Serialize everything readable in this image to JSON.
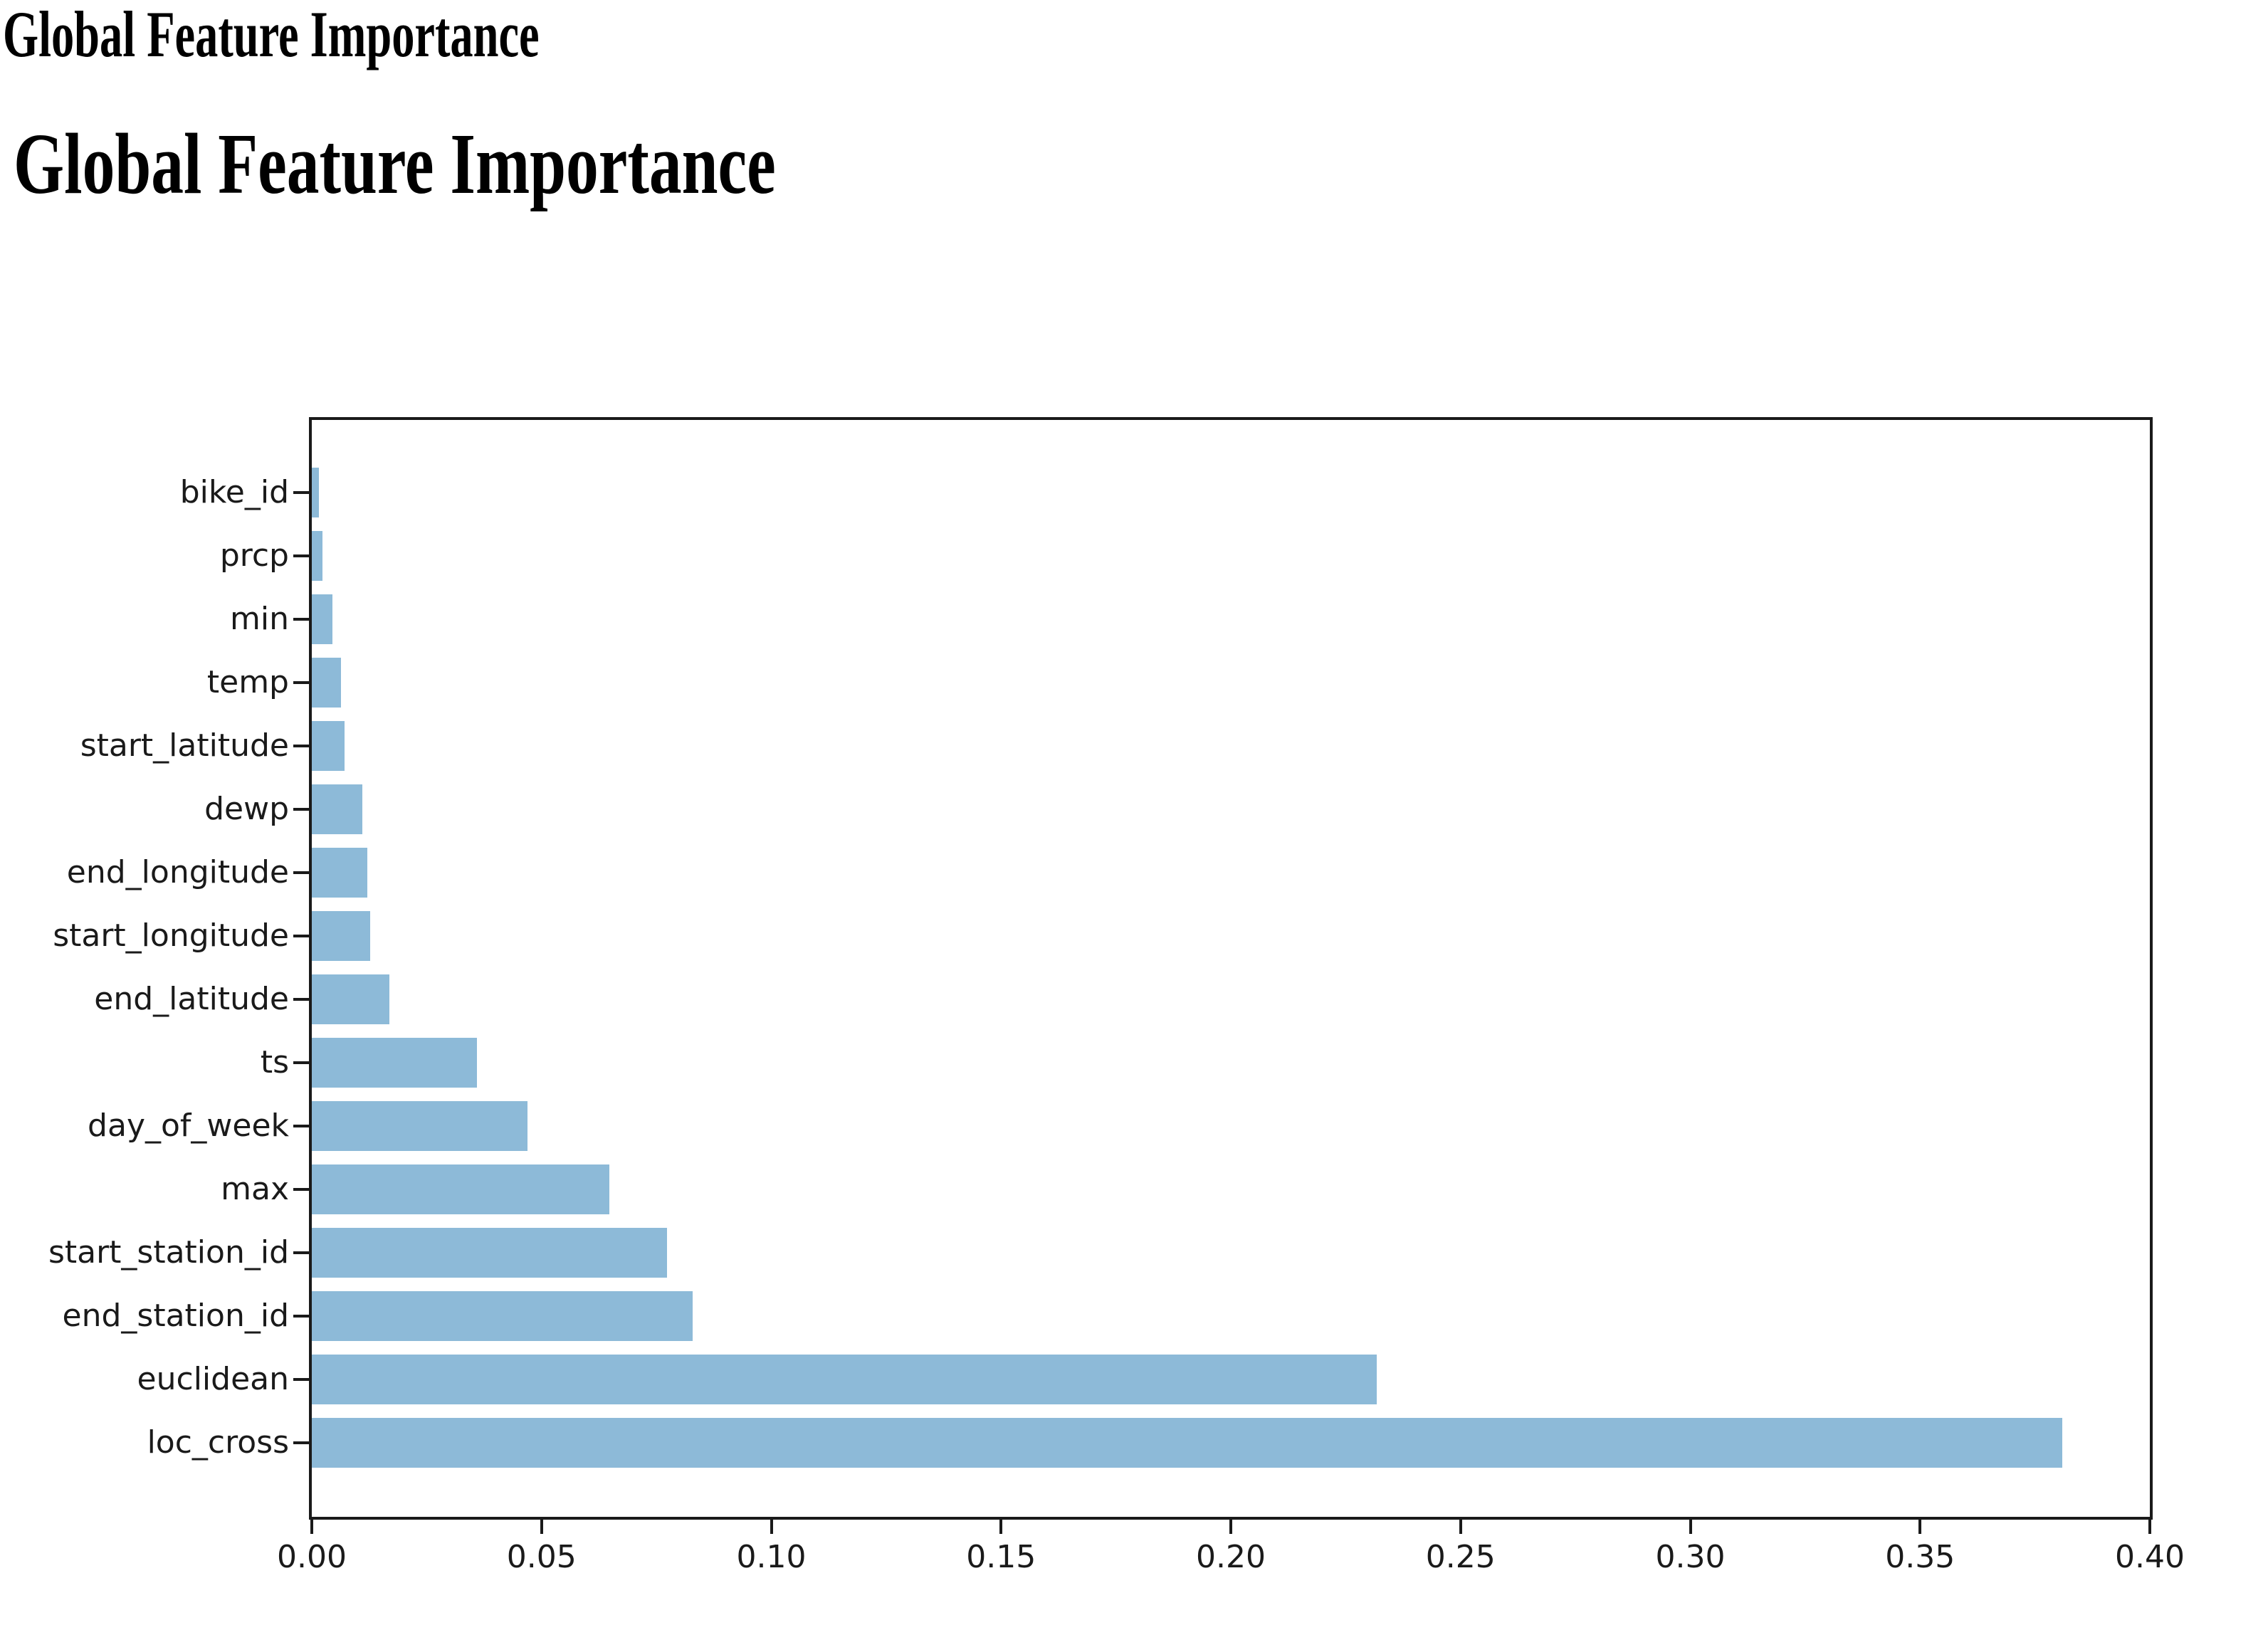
{
  "page": {
    "window_title": "Global Feature Importance",
    "heading": "Global Feature Importance"
  },
  "chart_data": {
    "type": "bar",
    "orientation": "horizontal",
    "title": "Global Feature Importance",
    "categories": [
      "bike_id",
      "prcp",
      "min",
      "temp",
      "start_latitude",
      "dewp",
      "end_longitude",
      "start_longitude",
      "end_latitude",
      "ts",
      "day_of_week",
      "max",
      "start_station_id",
      "end_station_id",
      "euclidean",
      "loc_cross"
    ],
    "values": [
      0.0015,
      0.0023,
      0.0045,
      0.0064,
      0.0071,
      0.011,
      0.0121,
      0.0127,
      0.0169,
      0.0359,
      0.0469,
      0.0648,
      0.0773,
      0.0829,
      0.2317,
      0.381
    ],
    "xlabel": "",
    "ylabel": "",
    "xlim": [
      0,
      0.4
    ],
    "x_tick_labels": [
      "0.00",
      "0.05",
      "0.10",
      "0.15",
      "0.20",
      "0.25",
      "0.30",
      "0.35",
      "0.40"
    ],
    "grid": false,
    "legend_position": "none",
    "bar_color": "#8dbad8",
    "axis_color": "#1a1a1a",
    "text_color": "#1a1a1a",
    "background_color": "#ffffff"
  }
}
